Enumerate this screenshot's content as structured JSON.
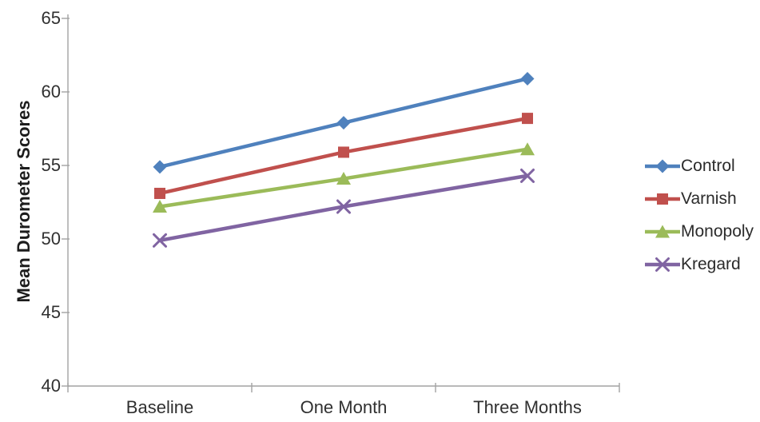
{
  "figure": {
    "background": "#ffffff",
    "axis_color": "#a3a3a3",
    "text_color": "#303030"
  },
  "chart_data": {
    "type": "line",
    "title": "",
    "xlabel": "",
    "ylabel": "Mean Durometer Scores",
    "categories": [
      "Baseline",
      "One Month",
      "Three Months"
    ],
    "ylim": [
      40,
      65
    ],
    "yticks": [
      65,
      60,
      55,
      50,
      45,
      40
    ],
    "ytick_step": 5,
    "grid": false,
    "legend_position": "right",
    "series": [
      {
        "name": "Control",
        "marker": "diamond",
        "color": "#4F81BD",
        "values": [
          54.9,
          57.9,
          60.9
        ]
      },
      {
        "name": "Varnish",
        "marker": "square",
        "color": "#C0504D",
        "values": [
          53.1,
          55.9,
          58.2
        ]
      },
      {
        "name": "Monopoly",
        "marker": "triangle",
        "color": "#9BBB59",
        "values": [
          52.2,
          54.1,
          56.1
        ]
      },
      {
        "name": "Kregard",
        "marker": "x",
        "color": "#8064A2",
        "values": [
          49.9,
          52.2,
          54.3
        ]
      }
    ]
  }
}
